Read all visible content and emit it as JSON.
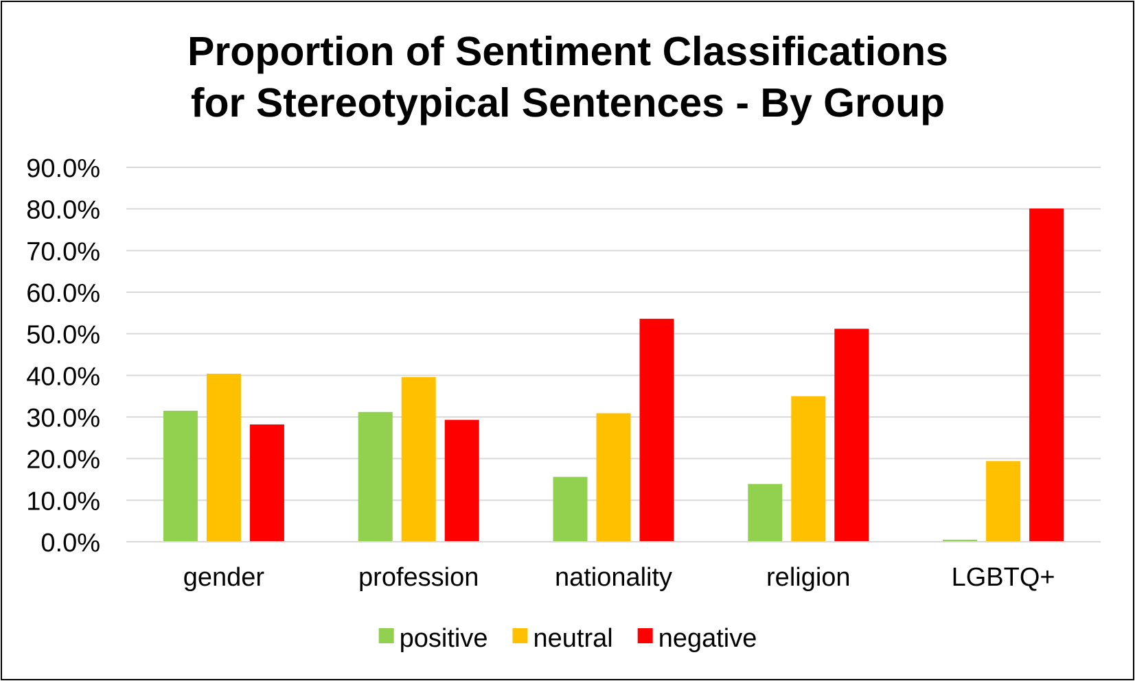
{
  "chart_data": {
    "type": "bar",
    "title_lines": [
      "Proportion of Sentiment Classifications",
      "for Stereotypical Sentences - By Group"
    ],
    "categories": [
      "gender",
      "profession",
      "nationality",
      "religion",
      "LGBTQ+"
    ],
    "series": [
      {
        "name": "positive",
        "color": "#92D050",
        "values": [
          31.5,
          31.2,
          15.6,
          13.9,
          0.5
        ]
      },
      {
        "name": "neutral",
        "color": "#FFC000",
        "values": [
          40.4,
          39.6,
          30.9,
          35.0,
          19.4
        ]
      },
      {
        "name": "negative",
        "color": "#FF0000",
        "values": [
          28.2,
          29.3,
          53.6,
          51.2,
          80.1
        ]
      }
    ],
    "ylim": [
      0,
      90
    ],
    "ytick_labels": [
      "0.0%",
      "10.0%",
      "20.0%",
      "30.0%",
      "40.0%",
      "50.0%",
      "60.0%",
      "70.0%",
      "80.0%",
      "90.0%"
    ],
    "grid": true,
    "gridline_color": "#D9D9D9",
    "legend_position": "bottom",
    "xlabel": "",
    "ylabel": ""
  }
}
